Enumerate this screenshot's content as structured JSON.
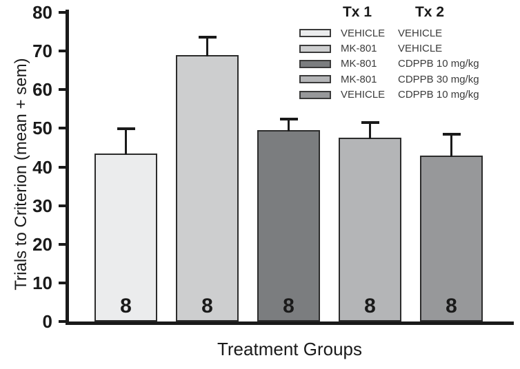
{
  "chart_data": {
    "type": "bar",
    "title": "",
    "xlabel": "Treatment Groups",
    "ylabel": "Trials to Criterion (mean + sem)",
    "ylim": [
      0,
      80
    ],
    "yticks": [
      0,
      10,
      20,
      30,
      40,
      50,
      60,
      70,
      80
    ],
    "grid": false,
    "legend_position": "top-right",
    "legend_headers": [
      "Tx 1",
      "Tx 2"
    ],
    "error_bars": "sem, upper only",
    "groups": [
      {
        "tx1": "VEHICLE",
        "tx2": "VEHICLE",
        "mean": 43.5,
        "sem": 6.3,
        "n": "8",
        "color": "#ebeced"
      },
      {
        "tx1": "MK-801",
        "tx2": "VEHICLE",
        "mean": 69.0,
        "sem": 4.5,
        "n": "8",
        "color": "#cdcecf"
      },
      {
        "tx1": "MK-801",
        "tx2": "CDPPB 10 mg/kg",
        "mean": 49.5,
        "sem": 2.9,
        "n": "8",
        "color": "#7b7d7f"
      },
      {
        "tx1": "MK-801",
        "tx2": "CDPPB 30 mg/kg",
        "mean": 47.5,
        "sem": 4.0,
        "n": "8",
        "color": "#b4b5b7"
      },
      {
        "tx1": "VEHICLE",
        "tx2": "CDPPB 10 mg/kg",
        "mean": 43.0,
        "sem": 5.4,
        "n": "8",
        "color": "#97989a"
      }
    ]
  }
}
